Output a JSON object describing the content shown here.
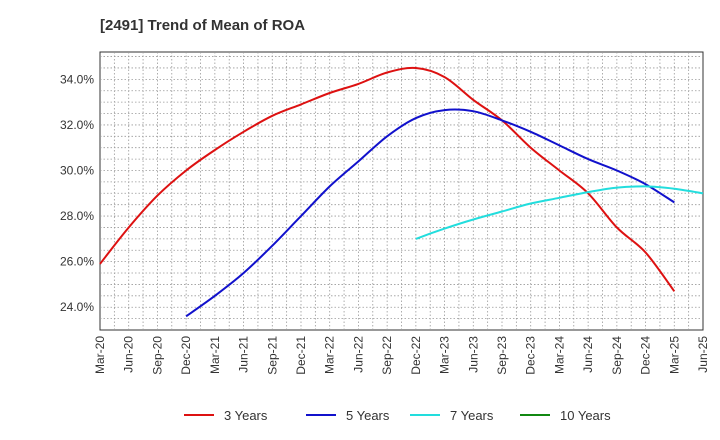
{
  "chart_data": {
    "type": "line",
    "title": "[2491]  Trend of Mean of ROA",
    "xlabel": "",
    "ylabel": "",
    "x_ticks": [
      "Mar-20",
      "Jun-20",
      "Sep-20",
      "Dec-20",
      "Mar-21",
      "Jun-21",
      "Sep-21",
      "Dec-21",
      "Mar-22",
      "Jun-22",
      "Sep-22",
      "Dec-22",
      "Mar-23",
      "Jun-23",
      "Sep-23",
      "Dec-23",
      "Mar-24",
      "Jun-24",
      "Sep-24",
      "Dec-24",
      "Mar-25",
      "Jun-25"
    ],
    "y_ticks": [
      "24.0%",
      "26.0%",
      "28.0%",
      "30.0%",
      "32.0%",
      "34.0%"
    ],
    "y_tick_values": [
      24,
      26,
      28,
      30,
      32,
      34
    ],
    "ylim": [
      23,
      35.2
    ],
    "grid": true,
    "legend_position": "bottom",
    "series": [
      {
        "name": "3 Years",
        "color": "#dd1111",
        "start_index": 0,
        "values": [
          25.9,
          27.5,
          28.9,
          30.0,
          30.9,
          31.7,
          32.4,
          32.9,
          33.4,
          33.8,
          34.3,
          34.5,
          34.1,
          33.1,
          32.2,
          31.0,
          30.0,
          29.0,
          27.5,
          26.4,
          24.7
        ]
      },
      {
        "name": "5 Years",
        "color": "#1111cc",
        "start_index": 3,
        "values": [
          23.6,
          24.5,
          25.5,
          26.7,
          28.0,
          29.3,
          30.4,
          31.5,
          32.3,
          32.65,
          32.6,
          32.2,
          31.7,
          31.1,
          30.5,
          30.0,
          29.4,
          28.6
        ]
      },
      {
        "name": "7 Years",
        "color": "#22dddd",
        "start_index": 11,
        "values": [
          27.0,
          27.45,
          27.85,
          28.2,
          28.55,
          28.8,
          29.05,
          29.25,
          29.3,
          29.2,
          29.0
        ]
      },
      {
        "name": "10 Years",
        "color": "#118811",
        "start_index": 0,
        "values": []
      }
    ]
  }
}
